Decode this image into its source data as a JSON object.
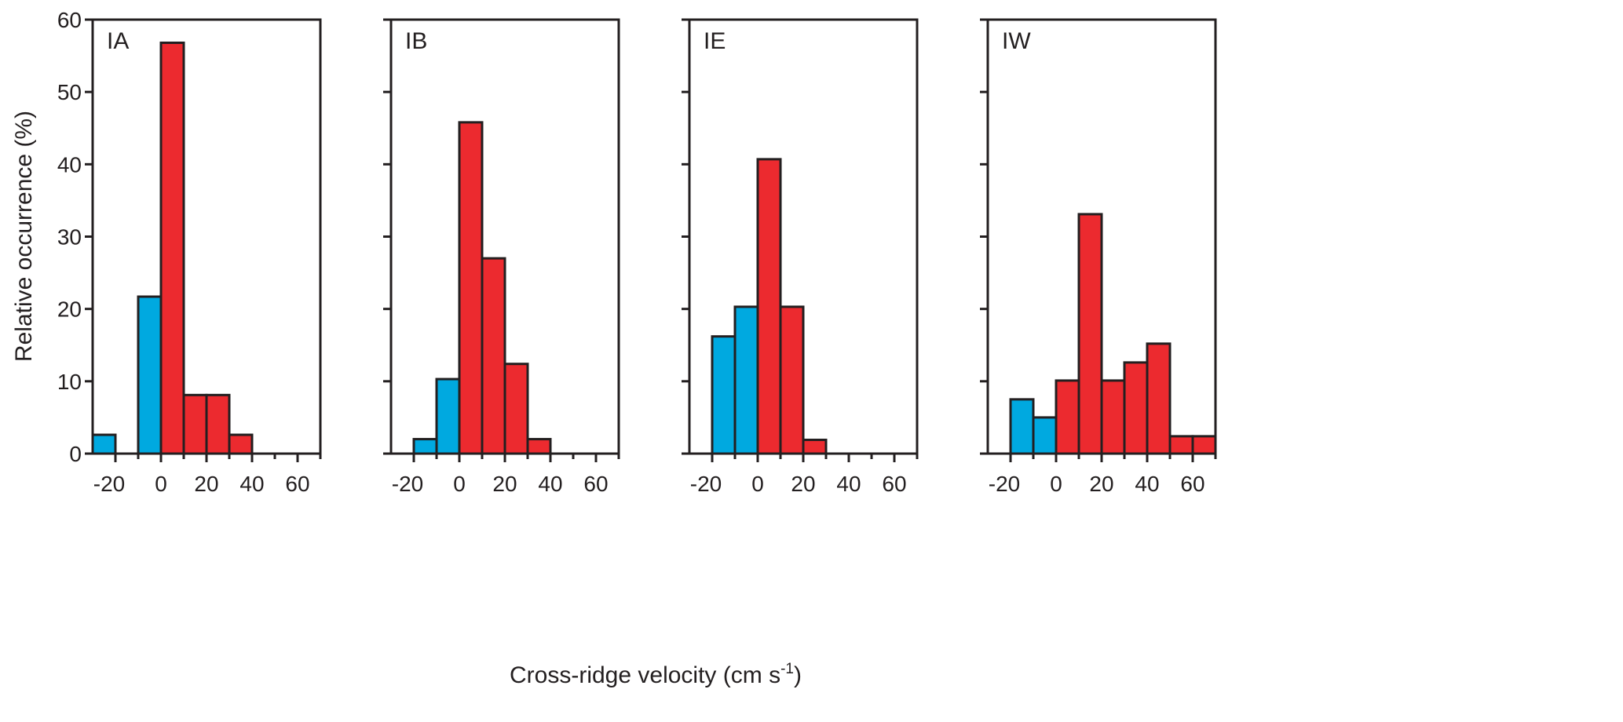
{
  "chart_data": {
    "type": "bar",
    "subtype": "histogram",
    "xlabel": "Cross-ridge velocity (cm s-1)",
    "xlabel_main": "Cross-ridge velocity (cm s",
    "xlabel_sup": "-1",
    "xlabel_end": ")",
    "ylabel": "Relative occurrence (%)",
    "ylim": [
      0,
      60
    ],
    "xlim": [
      -30,
      70
    ],
    "yticks": [
      0,
      10,
      20,
      30,
      40,
      50,
      60
    ],
    "xticks": [
      -20,
      0,
      20,
      40,
      60
    ],
    "bin_width": 10,
    "colors": {
      "negative": "#00a9e0",
      "positive": "#ec2a2f",
      "edge": "#231f20"
    },
    "panels": [
      {
        "label": "IA",
        "bins": [
          [
            -30,
            2.6
          ],
          [
            -10,
            21.7
          ],
          [
            0,
            56.8
          ],
          [
            10,
            8.1
          ],
          [
            20,
            8.1
          ],
          [
            30,
            2.6
          ]
        ]
      },
      {
        "label": "IB",
        "bins": [
          [
            -20,
            2.0
          ],
          [
            -10,
            10.3
          ],
          [
            0,
            45.8
          ],
          [
            10,
            27.0
          ],
          [
            20,
            12.4
          ],
          [
            30,
            2.0
          ]
        ]
      },
      {
        "label": "IE",
        "bins": [
          [
            -20,
            16.2
          ],
          [
            -10,
            20.3
          ],
          [
            0,
            40.7
          ],
          [
            10,
            20.3
          ],
          [
            20,
            1.9
          ]
        ]
      },
      {
        "label": "IW",
        "bins": [
          [
            -20,
            7.5
          ],
          [
            -10,
            5.0
          ],
          [
            0,
            10.1
          ],
          [
            10,
            33.1
          ],
          [
            20,
            10.1
          ],
          [
            30,
            12.6
          ],
          [
            40,
            15.2
          ],
          [
            50,
            2.4
          ],
          [
            60,
            2.4
          ]
        ]
      }
    ]
  }
}
